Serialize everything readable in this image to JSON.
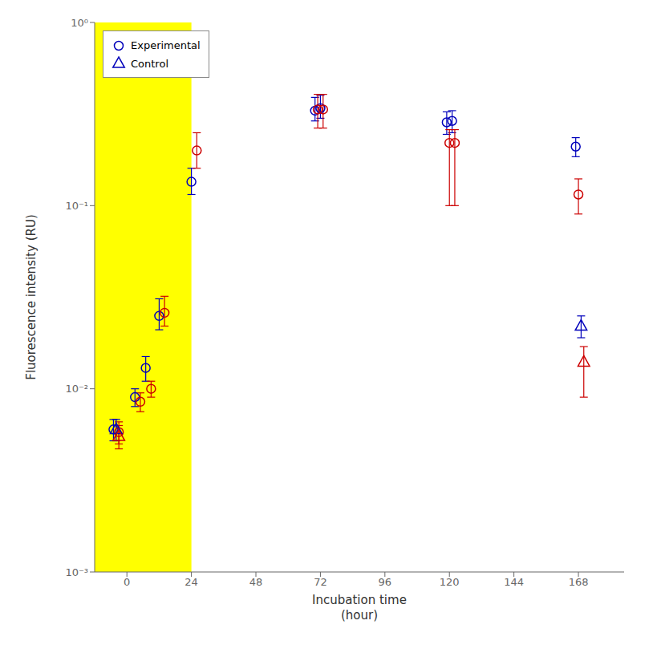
{
  "chart_data": {
    "type": "scatter",
    "xlabel": "Incubation time\n(hour)",
    "ylabel": "Fluorescence intensity (RU)",
    "xlim": [
      -12,
      185
    ],
    "xticks": [
      0,
      24,
      48,
      72,
      96,
      120,
      144,
      168
    ],
    "ylim": [
      0.001,
      1.0
    ],
    "yticks": [
      {
        "value": 0.001,
        "label": "10⁻³"
      },
      {
        "value": 0.01,
        "label": "10⁻²"
      },
      {
        "value": 0.1,
        "label": "10⁻¹"
      },
      {
        "value": 1.0,
        "label": "10⁰"
      }
    ],
    "log": "y",
    "grid": false,
    "legend": "upper left",
    "regions": [
      {
        "x": [
          -12,
          24
        ],
        "color": "#FFFF00"
      }
    ],
    "series": [
      {
        "name": "Experimental",
        "color": "#0000BB",
        "marker": "circle",
        "x": [
          -5,
          3,
          7,
          12,
          24,
          70,
          72,
          119,
          121,
          167
        ],
        "values": [
          0.006,
          0.009,
          0.013,
          0.025,
          0.135,
          0.33,
          0.34,
          0.285,
          0.29,
          0.21
        ],
        "error_low": [
          0.0008,
          0.001,
          0.002,
          0.004,
          0.02,
          0.04,
          0.04,
          0.04,
          0.04,
          0.025
        ],
        "error_high": [
          0.0008,
          0.001,
          0.002,
          0.006,
          0.025,
          0.06,
          0.06,
          0.04,
          0.04,
          0.025
        ]
      },
      {
        "name": "Experimental",
        "color": "#CC0000",
        "marker": "circle",
        "x": [
          -3,
          5,
          9,
          14,
          26,
          71,
          73,
          120,
          122,
          168
        ],
        "values": [
          0.0058,
          0.0085,
          0.01,
          0.026,
          0.2,
          0.335,
          0.335,
          0.22,
          0.22,
          0.115
        ],
        "error_low": [
          0.0008,
          0.001,
          0.001,
          0.004,
          0.04,
          0.07,
          0.07,
          0.12,
          0.12,
          0.025
        ],
        "error_high": [
          0.0008,
          0.001,
          0.001,
          0.006,
          0.05,
          0.07,
          0.07,
          0.04,
          0.04,
          0.025
        ]
      },
      {
        "name": "Control",
        "color": "#0000BB",
        "marker": "triangle",
        "x": [
          -4,
          169
        ],
        "values": [
          0.006,
          0.022
        ],
        "error_low": [
          0.0008,
          0.003
        ],
        "error_high": [
          0.0008,
          0.003
        ]
      },
      {
        "name": "Control",
        "color": "#CC0000",
        "marker": "triangle",
        "x": [
          -3,
          170
        ],
        "values": [
          0.0055,
          0.014
        ],
        "error_low": [
          0.0008,
          0.005
        ],
        "error_high": [
          0.0008,
          0.003
        ]
      }
    ]
  }
}
